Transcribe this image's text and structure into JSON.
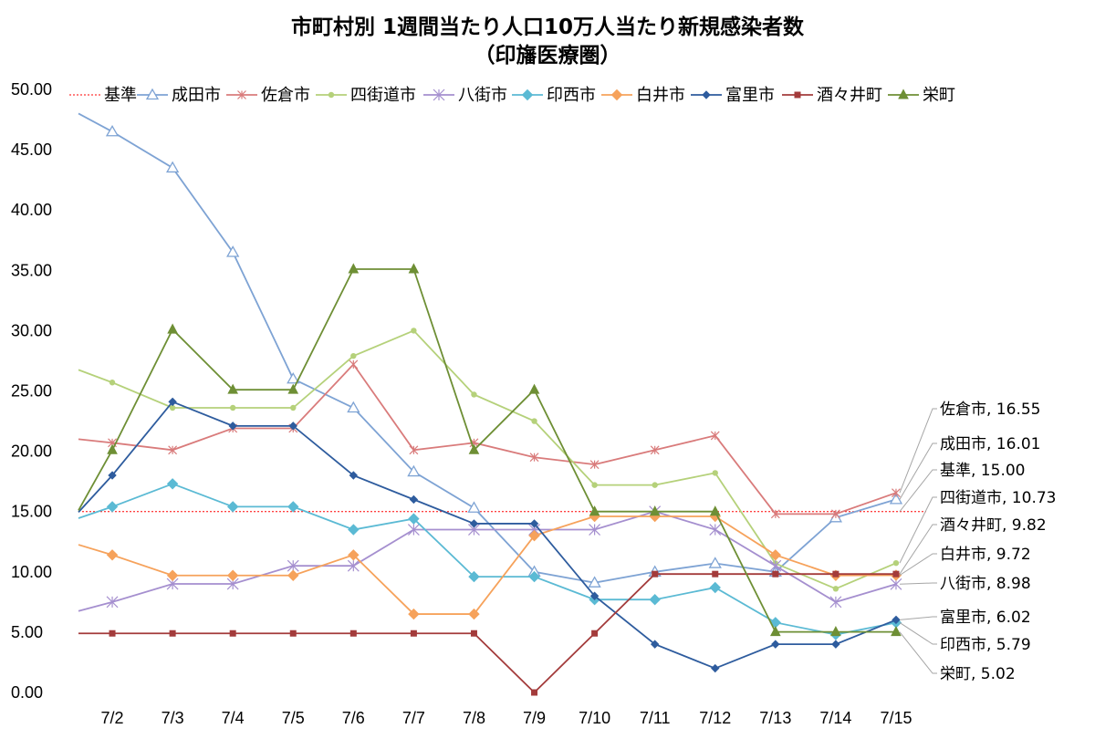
{
  "chart_data": {
    "type": "line",
    "title": "市町村別 1週間当たり人口10万人当たり新規感染者数",
    "subtitle": "（印旛医療圏）",
    "categories": [
      "7/2",
      "7/3",
      "7/4",
      "7/5",
      "7/6",
      "7/7",
      "7/8",
      "7/9",
      "7/10",
      "7/11",
      "7/12",
      "7/13",
      "7/14",
      "7/15"
    ],
    "y_ticks": [
      "0.00",
      "5.00",
      "10.00",
      "15.00",
      "20.00",
      "25.00",
      "30.00",
      "35.00",
      "40.00",
      "45.00",
      "50.00"
    ],
    "ylim": [
      0,
      50
    ],
    "grid": false,
    "legend_position": "top",
    "baseline": {
      "name": "基準",
      "value": 15.0,
      "color": "#ff0000",
      "label": "基準, 15.00"
    },
    "series": [
      {
        "name": "成田市",
        "color": "#7ea3d4",
        "marker": "triangle-open",
        "values": [
          46.5,
          43.5,
          36.5,
          26.0,
          23.6,
          18.3,
          15.3,
          10.0,
          9.1,
          10.0,
          10.7,
          10.0,
          14.5,
          16.01
        ],
        "end_label": "成田市, 16.01"
      },
      {
        "name": "佐倉市",
        "color": "#d97b7b",
        "marker": "star",
        "values": [
          20.7,
          20.1,
          21.9,
          21.9,
          27.2,
          20.1,
          20.7,
          19.5,
          18.9,
          20.1,
          21.3,
          14.8,
          14.8,
          16.55
        ],
        "end_label": "佐倉市, 16.55"
      },
      {
        "name": "四街道市",
        "color": "#b5d17a",
        "marker": "dot",
        "values": [
          25.7,
          23.6,
          23.6,
          23.6,
          27.9,
          30.0,
          24.7,
          22.5,
          17.2,
          17.2,
          18.2,
          10.7,
          8.6,
          10.73
        ],
        "end_label": "四街道市, 10.73"
      },
      {
        "name": "八街市",
        "color": "#a58fcf",
        "marker": "asterisk",
        "values": [
          7.5,
          9.0,
          9.0,
          10.5,
          10.5,
          13.5,
          13.5,
          13.5,
          13.5,
          15.0,
          13.5,
          10.5,
          7.5,
          8.98
        ],
        "end_label": "八街市, 8.98"
      },
      {
        "name": "印西市",
        "color": "#5bbad4",
        "marker": "diamond",
        "values": [
          15.4,
          17.3,
          15.4,
          15.4,
          13.5,
          14.4,
          9.6,
          9.6,
          7.7,
          7.7,
          8.7,
          5.8,
          4.8,
          5.79
        ],
        "end_label": "印西市, 5.79"
      },
      {
        "name": "白井市",
        "color": "#f6a25b",
        "marker": "diamond",
        "values": [
          11.4,
          9.7,
          9.7,
          9.7,
          11.4,
          6.5,
          6.5,
          13.0,
          14.6,
          14.6,
          14.6,
          11.4,
          9.7,
          9.72
        ],
        "end_label": "白井市, 9.72"
      },
      {
        "name": "富里市",
        "color": "#2e5c9e",
        "marker": "diamond-small",
        "values": [
          18.0,
          24.1,
          22.1,
          22.1,
          18.0,
          16.0,
          14.0,
          14.0,
          8.0,
          4.0,
          2.0,
          4.0,
          4.0,
          6.02
        ],
        "end_label": "富里市, 6.02"
      },
      {
        "name": "酒々井町",
        "color": "#a33b3b",
        "marker": "square",
        "values": [
          4.9,
          4.9,
          4.9,
          4.9,
          4.9,
          4.9,
          4.9,
          0.0,
          4.9,
          9.82,
          9.82,
          9.82,
          9.82,
          9.82
        ],
        "end_label": "酒々井町, 9.82"
      },
      {
        "name": "栄町",
        "color": "#6e8f35",
        "marker": "triangle",
        "values": [
          20.1,
          30.1,
          25.1,
          25.1,
          35.1,
          35.1,
          20.1,
          25.1,
          15.0,
          15.0,
          15.0,
          5.02,
          5.02,
          5.02
        ],
        "end_label": "栄町, 5.02"
      }
    ]
  }
}
